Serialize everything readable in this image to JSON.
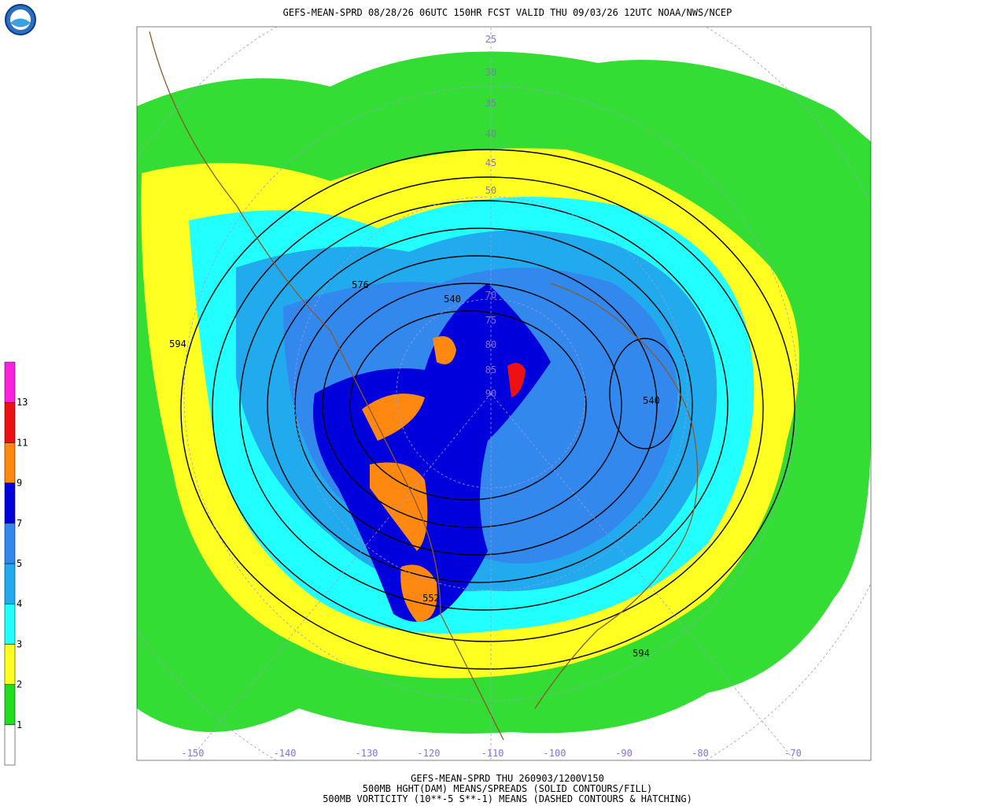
{
  "header": {
    "title": "GEFS-MEAN-SPRD 08/28/26 06UTC 150HR FCST VALID THU 09/03/26 12UTC NOAA/NWS/NCEP"
  },
  "map": {
    "height_labels": [
      576,
      594,
      540,
      540,
      594,
      552
    ],
    "lat_labels": [
      25,
      30,
      35,
      40,
      45,
      50,
      70,
      75,
      80,
      85,
      90
    ],
    "lon_labels": [
      -150,
      -140,
      -130,
      -120,
      -110,
      -100,
      -90,
      -80,
      -70
    ]
  },
  "colorbar": {
    "labels": [
      1,
      2,
      3,
      4,
      5,
      7,
      9,
      11,
      13
    ],
    "colors": [
      "#ffffff",
      "#22dd22",
      "#ffff22",
      "#22ffff",
      "#22aaee",
      "#3388ee",
      "#0000dd",
      "#ff8811",
      "#ee1111",
      "#ff22dd"
    ]
  },
  "footer": [
    "GEFS-MEAN-SPRD THU 260903/1200V150",
    "500MB HGHT(DAM) MEANS/SPREADS (SOLID CONTOURS/FILL)",
    "500MB VORTICITY (10**-5 S**-1) MEANS (DASHED CONTOURS & HATCHING)"
  ]
}
